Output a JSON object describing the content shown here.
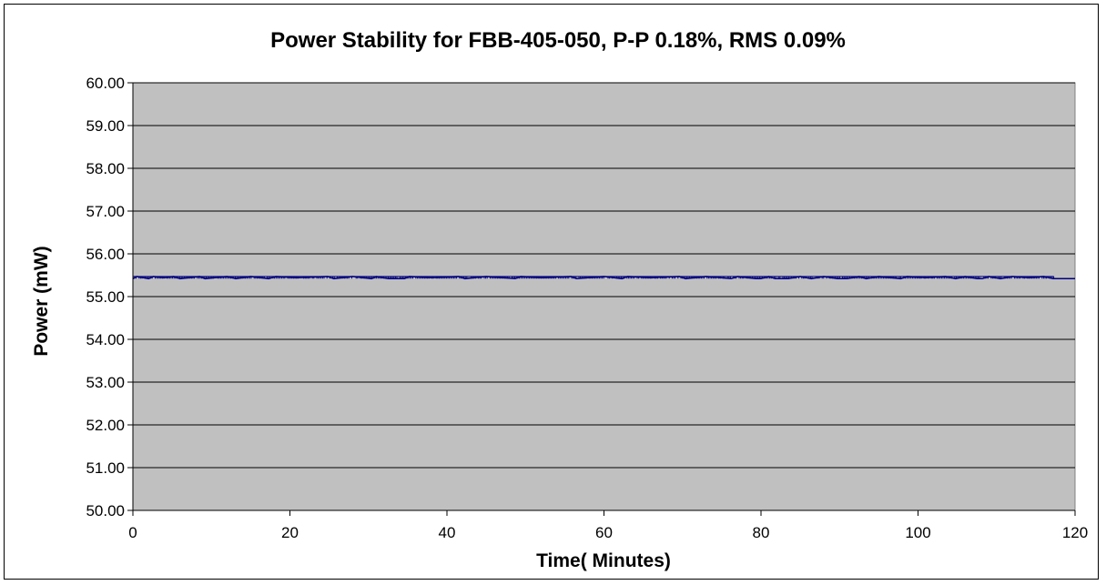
{
  "chart_data": {
    "type": "line",
    "title": "Power Stability for FBB-405-050, P-P 0.18%, RMS 0.09%",
    "xlabel": "Time( Minutes)",
    "ylabel": "Power (mW)",
    "xlim": [
      0,
      120
    ],
    "ylim": [
      50,
      60
    ],
    "x_ticks": [
      0,
      20,
      40,
      60,
      80,
      100,
      120
    ],
    "x_tick_labels": [
      "0",
      "20",
      "40",
      "60",
      "80",
      "100",
      "120"
    ],
    "y_ticks": [
      50,
      51,
      52,
      53,
      54,
      55,
      56,
      57,
      58,
      59,
      60
    ],
    "y_tick_labels": [
      "50.00",
      "51.00",
      "52.00",
      "53.00",
      "54.00",
      "55.00",
      "56.00",
      "57.00",
      "58.00",
      "59.00",
      "60.00"
    ],
    "grid": "horizontal",
    "legend": "none",
    "plot_background": "#c0c0c0",
    "series": [
      {
        "color": "#000080",
        "upper_level": 55.47,
        "lower_level": 55.42,
        "x": [
          0,
          0.5,
          2.0,
          2.6,
          4.0,
          5.2,
          6.0,
          8.5,
          9.2,
          12.0,
          13.1,
          15.0,
          17.3,
          18.2,
          21.0,
          24.8,
          25.6,
          28.0,
          30.4,
          31.0,
          32.5,
          33.4,
          34.6,
          35.2,
          38.0,
          41.5,
          42.3,
          45.0,
          48.7,
          49.4,
          52.0,
          55.8,
          56.5,
          60.0,
          62.3,
          63.0,
          66.0,
          69.6,
          70.4,
          73.0,
          76.2,
          77.0,
          79.3,
          80.0,
          81.0,
          81.8,
          83.5,
          85.0,
          86.4,
          88.0,
          89.7,
          91.0,
          92.5,
          93.4,
          95.0,
          97.8,
          98.6,
          101.0,
          103.5,
          104.8,
          106.0,
          107.5,
          108.2,
          109.0,
          110.5,
          112.0,
          114.0,
          116.0,
          117.2,
          120.0
        ],
        "y": [
          55.42,
          55.47,
          55.42,
          55.47,
          55.44,
          55.47,
          55.42,
          55.47,
          55.42,
          55.47,
          55.42,
          55.47,
          55.42,
          55.47,
          55.44,
          55.47,
          55.42,
          55.47,
          55.42,
          55.47,
          55.42,
          55.42,
          55.42,
          55.47,
          55.44,
          55.47,
          55.42,
          55.47,
          55.42,
          55.47,
          55.44,
          55.47,
          55.42,
          55.47,
          55.42,
          55.47,
          55.44,
          55.47,
          55.42,
          55.47,
          55.42,
          55.47,
          55.42,
          55.42,
          55.47,
          55.42,
          55.42,
          55.47,
          55.42,
          55.47,
          55.42,
          55.42,
          55.47,
          55.42,
          55.47,
          55.42,
          55.47,
          55.44,
          55.47,
          55.42,
          55.47,
          55.42,
          55.42,
          55.47,
          55.42,
          55.47,
          55.44,
          55.47,
          55.42,
          55.42
        ]
      }
    ]
  }
}
